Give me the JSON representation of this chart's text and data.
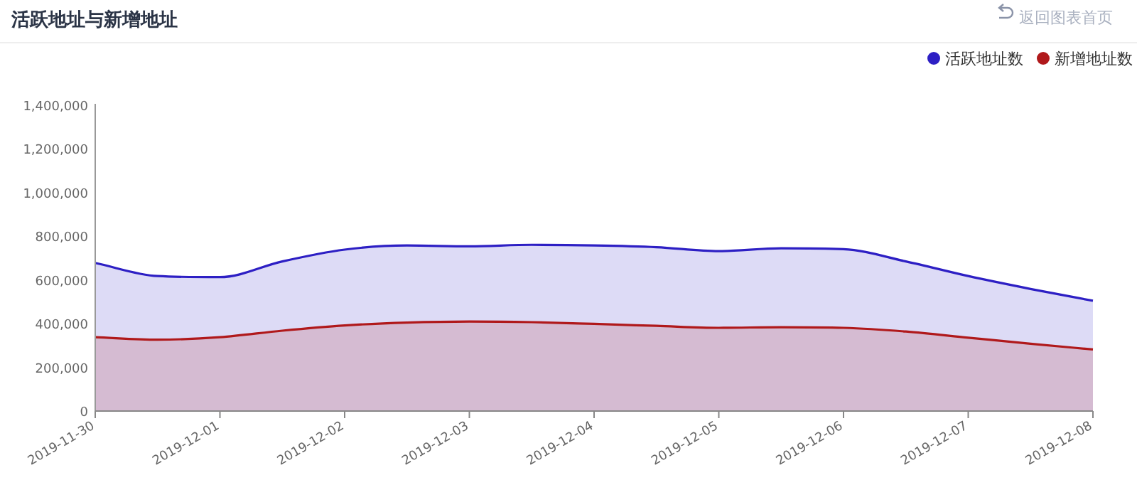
{
  "chart_data": {
    "type": "area",
    "title": "活跃地址与新增地址",
    "annotations": [
      "返回图表首页"
    ],
    "x": [
      "2019-11-30T00:00",
      "2019-11-30T12:00",
      "2019-12-01T00:00",
      "2019-12-01T12:00",
      "2019-12-02T00:00",
      "2019-12-02T12:00",
      "2019-12-03T00:00",
      "2019-12-03T12:00",
      "2019-12-04T00:00",
      "2019-12-04T12:00",
      "2019-12-05T00:00",
      "2019-12-05T12:00",
      "2019-12-06T00:00",
      "2019-12-06T12:00",
      "2019-12-07T00:00",
      "2019-12-07T12:00",
      "2019-12-08T00:00"
    ],
    "series": [
      {
        "name": "活跃地址数",
        "color": "#2d1fc4",
        "values": [
          678000,
          618000,
          613000,
          685000,
          739000,
          758000,
          754000,
          761000,
          758000,
          750000,
          732000,
          745000,
          741000,
          685000,
          618000,
          559000,
          505000
        ]
      },
      {
        "name": "新增地址数",
        "color": "#b0191b",
        "values": [
          338000,
          327000,
          338000,
          368000,
          392000,
          405000,
          410000,
          407000,
          399000,
          390000,
          381000,
          384000,
          381000,
          364000,
          336000,
          308000,
          282000
        ]
      }
    ],
    "xlim": [
      "2019-11-30",
      "2019-12-08"
    ],
    "xticks": [
      "2019-11-30",
      "2019-12-01",
      "2019-12-02",
      "2019-12-03",
      "2019-12-04",
      "2019-12-05",
      "2019-12-06",
      "2019-12-07",
      "2019-12-08"
    ],
    "ylim": [
      0,
      1400000
    ],
    "yticks": [
      0,
      {
        "value": 200000,
        "label": "200,000"
      },
      {
        "value": 400000,
        "label": "400,000"
      },
      {
        "value": 600000,
        "label": "600,000"
      },
      {
        "value": 800000,
        "label": "800,000"
      },
      {
        "value": 1000000,
        "label": "1,000,000"
      },
      {
        "value": 1200000,
        "label": "1,200,000"
      },
      {
        "value": 1400000,
        "label": "1,400,000"
      }
    ],
    "grid": false,
    "legend": "top right"
  }
}
